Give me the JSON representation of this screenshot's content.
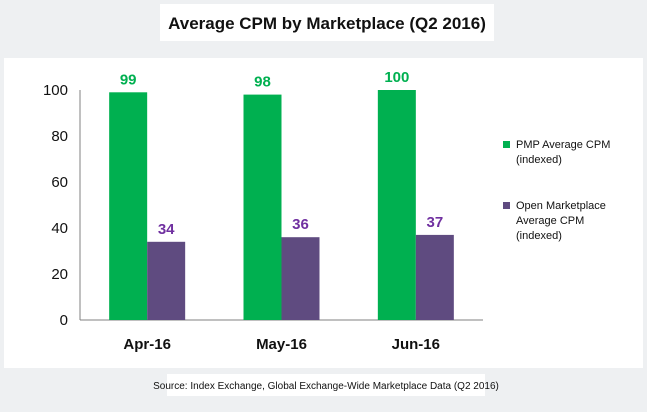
{
  "chart_data": {
    "type": "bar",
    "title": "Average CPM by Marketplace (Q2 2016)",
    "categories": [
      "Apr-16",
      "May-16",
      "Jun-16"
    ],
    "series": [
      {
        "name": "PMP Average CPM (indexed)",
        "legend_lines": [
          "PMP Average CPM",
          "(indexed)"
        ],
        "values": [
          99,
          98,
          100
        ],
        "color": "#00b050",
        "label_color": "#00b050"
      },
      {
        "name": "Open Marketplace Average CPM (indexed)",
        "legend_lines": [
          "Open Marketplace",
          "Average CPM",
          "(indexed)"
        ],
        "values": [
          34,
          36,
          37
        ],
        "color": "#5f4b80",
        "label_color": "#7030a0"
      }
    ],
    "ylim": [
      0,
      100
    ],
    "yticks": [
      "0",
      "20",
      "40",
      "60",
      "80",
      "100"
    ],
    "grid": false,
    "legend_position": "right"
  },
  "source_note": "Source: Index Exchange, Global Exchange-Wide Marketplace Data (Q2 2016)"
}
